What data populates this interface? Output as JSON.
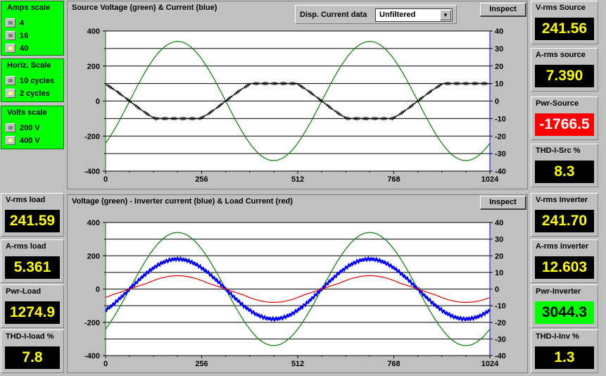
{
  "amps_scale": {
    "title": "Amps scale",
    "options": [
      "4",
      "16",
      "40"
    ],
    "selected": "40"
  },
  "horiz_scale": {
    "title": "Horiz. Scale",
    "options": [
      "10 cycles",
      "2 cycles"
    ],
    "selected": "2 cycles"
  },
  "volts_scale": {
    "title": "Volts scale",
    "options": [
      "200 V",
      "400 V"
    ],
    "selected": "400 V"
  },
  "top_chart": {
    "title": "Source Voltage (green) & Current (blue)",
    "disp_label": "Disp. Current data",
    "disp_value": "Unfiltered",
    "inspect_label": "Inspect"
  },
  "bottom_chart": {
    "title": "Voltage (green) - Inverter current (blue) & Load Current (red)",
    "inspect_label": "Inspect"
  },
  "meters_left": [
    {
      "label": "V-rms load",
      "value": "241.59",
      "style": "normal"
    },
    {
      "label": "A-rms load",
      "value": "5.361",
      "style": "normal"
    },
    {
      "label": "Pwr-Load",
      "value": "1274.9",
      "style": "normal"
    },
    {
      "label": "THD-I-load  %",
      "value": "7.8",
      "style": "normal"
    }
  ],
  "meters_right": [
    {
      "label": "V-rms Source",
      "value": "241.56",
      "style": "normal"
    },
    {
      "label": "A-rms source",
      "value": "7.390",
      "style": "normal"
    },
    {
      "label": "Pwr-Source",
      "value": "-1766.5",
      "style": "red"
    },
    {
      "label": "THD-I-Src  %",
      "value": "8.3",
      "style": "normal"
    },
    {
      "label": "V-rms Inverter",
      "value": "241.70",
      "style": "normal"
    },
    {
      "label": "A-rms inverter",
      "value": "12.603",
      "style": "normal"
    },
    {
      "label": "Pwr-Inverter",
      "value": "3044.3",
      "style": "green"
    },
    {
      "label": "THD-I-Inv  %",
      "value": "1.3",
      "style": "normal"
    }
  ],
  "colors": {
    "voltage": "#008000",
    "current_blue": "#0000ff",
    "current_black": "#000000",
    "load_red": "#e00000",
    "meter_text": "#ffff00"
  },
  "chart_data": [
    {
      "type": "line",
      "title": "Source Voltage (green) & Current (blue)",
      "x_ticks": [
        0,
        256,
        512,
        768,
        1024
      ],
      "xlim": [
        0,
        1024
      ],
      "y_left": {
        "ylim": [
          -400,
          400
        ],
        "ticks": [
          -400,
          -200,
          0,
          200,
          400
        ]
      },
      "y_right": {
        "ylim": [
          -40,
          40
        ],
        "ticks": [
          -40,
          -30,
          -20,
          -10,
          0,
          10,
          20,
          30,
          40
        ]
      },
      "series": [
        {
          "axis": "left",
          "amplitude": 340,
          "period_samples": 512,
          "peak_at_sample": 192,
          "color": "#008000"
        },
        {
          "axis": "right",
          "amplitude": 10,
          "period_samples": 512,
          "peak_at_sample": 448,
          "color": "#000000"
        }
      ],
      "grid": true
    },
    {
      "type": "line",
      "title": "Voltage (green) - Inverter current (blue) & Load Current (red)",
      "x_ticks": [
        0,
        256,
        512,
        768,
        1024
      ],
      "xlim": [
        0,
        1024
      ],
      "y_left": {
        "ylim": [
          -400,
          400
        ],
        "ticks": [
          -400,
          -200,
          0,
          200,
          400
        ]
      },
      "y_right": {
        "ylim": [
          -40,
          40
        ],
        "ticks": [
          -40,
          -30,
          -20,
          -10,
          0,
          10,
          20,
          30,
          40
        ]
      },
      "series": [
        {
          "axis": "left",
          "amplitude": 340,
          "period_samples": 512,
          "peak_at_sample": 192,
          "color": "#008000"
        },
        {
          "axis": "right",
          "amplitude": 18,
          "period_samples": 512,
          "peak_at_sample": 192,
          "color": "#0000ff"
        },
        {
          "axis": "right",
          "amplitude": 8,
          "period_samples": 512,
          "peak_at_sample": 192,
          "color": "#e00000"
        }
      ],
      "grid": true
    }
  ]
}
